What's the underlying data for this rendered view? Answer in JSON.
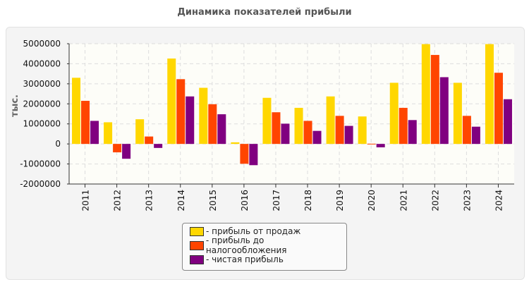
{
  "chart_data": {
    "type": "bar",
    "title": "Динамика показателей прибыли",
    "ylabel": "тыс.",
    "xlabel": "",
    "ylim": [
      -2000000,
      5000000
    ],
    "yticks": [
      5000000,
      4000000,
      3000000,
      2000000,
      1000000,
      0,
      -1000000,
      -2000000
    ],
    "ytick_labels": [
      "5000000",
      "4000000",
      "3000000",
      "2000000",
      "1000000",
      "0",
      "-1000000",
      "-2000000"
    ],
    "grid": true,
    "legend_position": "bottom",
    "categories": [
      "2011",
      "2012",
      "2013",
      "2014",
      "2015",
      "2016",
      "2017",
      "2018",
      "2019",
      "2020",
      "2021",
      "2022",
      "2023",
      "2024"
    ],
    "series": [
      {
        "name": "- прибыль от продаж",
        "color": "#ffd700",
        "values": [
          3300000,
          1080000,
          1230000,
          4260000,
          2800000,
          80000,
          2300000,
          1800000,
          2370000,
          1370000,
          3050000,
          4980000,
          3050000,
          4980000
        ]
      },
      {
        "name": "- прибыль до налогообложения",
        "color": "#ff4500",
        "values": [
          2150000,
          -420000,
          370000,
          3230000,
          1980000,
          -990000,
          1580000,
          1150000,
          1400000,
          10000,
          1800000,
          4440000,
          1400000,
          3550000
        ]
      },
      {
        "name": "- чистая прибыль",
        "color": "#800080",
        "values": [
          1150000,
          -740000,
          -200000,
          2370000,
          1480000,
          -1060000,
          1010000,
          650000,
          900000,
          -170000,
          1190000,
          3330000,
          860000,
          2230000
        ]
      }
    ]
  }
}
